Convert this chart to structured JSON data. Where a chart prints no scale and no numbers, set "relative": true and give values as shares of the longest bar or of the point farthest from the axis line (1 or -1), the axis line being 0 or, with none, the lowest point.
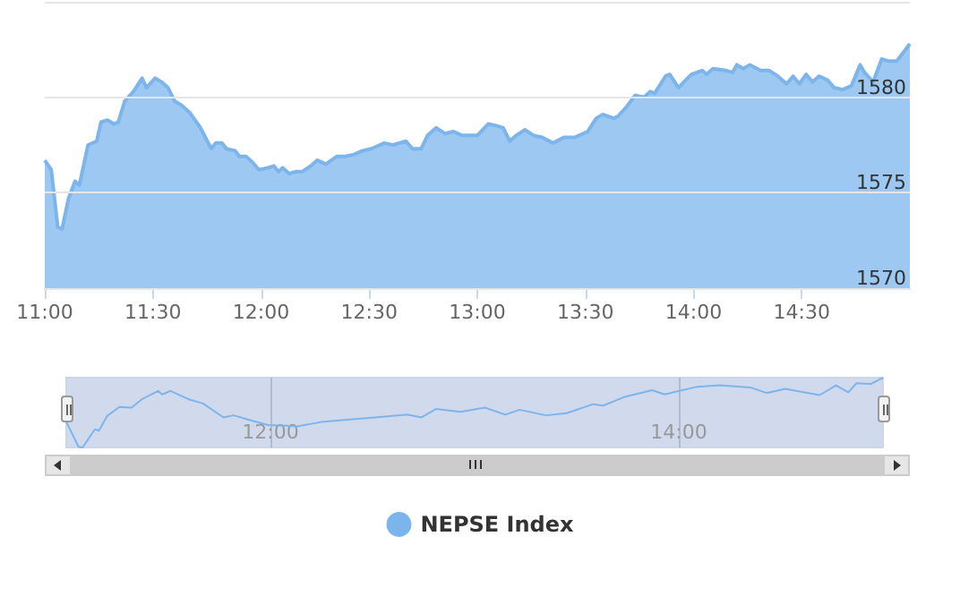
{
  "chart_data": [
    {
      "type": "area",
      "x": [
        11.0,
        11.03,
        11.06,
        11.08,
        11.11,
        11.14,
        11.16,
        11.2,
        11.24,
        11.26,
        11.29,
        11.32,
        11.34,
        11.37,
        11.41,
        11.45,
        11.47,
        11.51,
        11.54,
        11.57,
        11.6,
        11.63,
        11.67,
        11.72,
        11.77,
        11.79,
        11.82,
        11.84,
        11.88,
        11.9,
        11.93,
        11.96,
        11.99,
        12.03,
        12.06,
        12.08,
        12.1,
        12.13,
        12.16,
        12.19,
        12.23,
        12.26,
        12.3,
        12.35,
        12.39,
        12.43,
        12.47,
        12.51,
        12.57,
        12.61,
        12.67,
        12.7,
        12.74,
        12.77,
        12.81,
        12.85,
        12.89,
        12.93,
        13.0,
        13.05,
        13.09,
        13.12,
        13.15,
        13.18,
        13.22,
        13.26,
        13.3,
        13.35,
        13.4,
        13.45,
        13.51,
        13.55,
        13.58,
        13.63,
        13.65,
        13.69,
        13.73,
        13.77,
        13.8,
        13.82,
        13.87,
        13.89,
        13.93,
        13.99,
        14.04,
        14.06,
        14.09,
        14.15,
        14.18,
        14.2,
        14.23,
        14.26,
        14.31,
        14.35,
        14.39,
        14.43,
        14.46,
        14.49,
        14.52,
        14.55,
        14.58,
        14.62,
        14.65,
        14.69,
        14.73,
        14.77,
        14.79,
        14.83,
        14.87,
        14.9,
        14.94,
        15.0
      ],
      "series": [
        {
          "name": "NEPSE Index",
          "color": "#7cb5ec",
          "values": [
            1576.7,
            1576.2,
            1573.2,
            1573.1,
            1574.7,
            1575.6,
            1575.4,
            1577.5,
            1577.7,
            1578.7,
            1578.8,
            1578.6,
            1578.7,
            1579.8,
            1580.3,
            1581.0,
            1580.5,
            1581.0,
            1580.8,
            1580.5,
            1579.8,
            1579.6,
            1579.2,
            1578.4,
            1577.3,
            1577.6,
            1577.6,
            1577.3,
            1577.2,
            1576.9,
            1576.9,
            1576.6,
            1576.2,
            1576.3,
            1576.4,
            1576.1,
            1576.3,
            1576.0,
            1576.1,
            1576.1,
            1576.4,
            1576.7,
            1576.5,
            1576.9,
            1576.9,
            1577.0,
            1577.2,
            1577.3,
            1577.6,
            1577.5,
            1577.7,
            1577.3,
            1577.3,
            1578.0,
            1578.4,
            1578.1,
            1578.2,
            1578.0,
            1578.0,
            1578.6,
            1578.5,
            1578.4,
            1577.7,
            1578.0,
            1578.3,
            1578.0,
            1577.9,
            1577.6,
            1577.9,
            1577.9,
            1578.2,
            1578.9,
            1579.1,
            1578.9,
            1579.0,
            1579.5,
            1580.1,
            1580.0,
            1580.3,
            1580.2,
            1581.1,
            1581.2,
            1580.5,
            1581.2,
            1581.4,
            1581.2,
            1581.5,
            1581.4,
            1581.3,
            1581.7,
            1581.5,
            1581.7,
            1581.4,
            1581.4,
            1581.1,
            1580.7,
            1581.1,
            1580.7,
            1581.2,
            1580.8,
            1581.1,
            1580.9,
            1580.5,
            1580.4,
            1580.6,
            1581.7,
            1581.3,
            1580.8,
            1582.0,
            1581.9,
            1581.9,
            1582.8
          ]
        }
      ],
      "xlim": [
        11,
        15
      ],
      "xticks": [
        {
          "value": 11,
          "label": "11:00"
        },
        {
          "value": 11.5,
          "label": "11:30"
        },
        {
          "value": 12,
          "label": "12:00"
        },
        {
          "value": 12.5,
          "label": "12:30"
        },
        {
          "value": 13,
          "label": "13:00"
        },
        {
          "value": 13.5,
          "label": "13:30"
        },
        {
          "value": 14,
          "label": "14:00"
        },
        {
          "value": 14.5,
          "label": "14:30"
        }
      ],
      "ylim": [
        1570,
        1585
      ],
      "yticks": [
        1570,
        1575,
        1580,
        {
          "value": 1585,
          "label": null
        }
      ],
      "grid": "y",
      "legend": "bottom",
      "marker": "none"
    },
    {
      "type": "line",
      "relative": true,
      "x": [
        11.0,
        11.06,
        11.08,
        11.14,
        11.16,
        11.2,
        11.26,
        11.32,
        11.37,
        11.45,
        11.47,
        11.51,
        11.6,
        11.67,
        11.77,
        11.82,
        11.9,
        11.99,
        12.08,
        12.13,
        12.26,
        12.35,
        12.51,
        12.67,
        12.74,
        12.81,
        12.93,
        13.05,
        13.15,
        13.22,
        13.35,
        13.45,
        13.58,
        13.63,
        13.73,
        13.87,
        13.93,
        14.09,
        14.2,
        14.35,
        14.43,
        14.52,
        14.69,
        14.77,
        14.83,
        14.87,
        14.94,
        15.0
      ],
      "series": [
        {
          "color": "#7cb5ec",
          "values": [
            0.37,
            0.01,
            0,
            0.26,
            0.24,
            0.45,
            0.58,
            0.57,
            0.69,
            0.81,
            0.76,
            0.81,
            0.69,
            0.63,
            0.43,
            0.46,
            0.39,
            0.32,
            0.31,
            0.3,
            0.37,
            0.39,
            0.43,
            0.47,
            0.43,
            0.55,
            0.51,
            0.57,
            0.47,
            0.54,
            0.46,
            0.49,
            0.62,
            0.6,
            0.72,
            0.82,
            0.76,
            0.87,
            0.89,
            0.86,
            0.78,
            0.84,
            0.75,
            0.89,
            0.79,
            0.92,
            0.91,
            1
          ]
        }
      ],
      "xlim": [
        11,
        15
      ],
      "xticks": [
        {
          "value": 12,
          "label": "12:00"
        },
        {
          "value": 14,
          "label": "14:00"
        }
      ],
      "tick_labels": "x",
      "grid": "x",
      "marker": "none"
    }
  ]
}
